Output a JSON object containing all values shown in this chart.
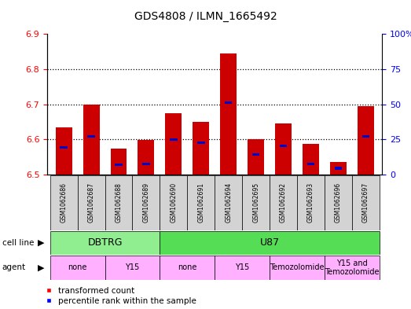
{
  "title": "GDS4808 / ILMN_1665492",
  "samples": [
    "GSM1062686",
    "GSM1062687",
    "GSM1062688",
    "GSM1062689",
    "GSM1062690",
    "GSM1062691",
    "GSM1062694",
    "GSM1062695",
    "GSM1062692",
    "GSM1062693",
    "GSM1062696",
    "GSM1062697"
  ],
  "red_values": [
    6.635,
    6.7,
    6.575,
    6.598,
    6.675,
    6.65,
    6.845,
    6.6,
    6.645,
    6.587,
    6.535,
    6.695
  ],
  "blue_values": [
    6.578,
    6.608,
    6.528,
    6.53,
    6.6,
    6.59,
    6.705,
    6.558,
    6.582,
    6.53,
    6.518,
    6.608
  ],
  "bar_base": 6.5,
  "ylim_left": [
    6.5,
    6.9
  ],
  "ylim_right": [
    0,
    100
  ],
  "yticks_left": [
    6.5,
    6.6,
    6.7,
    6.8,
    6.9
  ],
  "yticks_right": [
    0,
    25,
    50,
    75,
    100
  ],
  "ytick_labels_right": [
    "0",
    "25",
    "50",
    "75",
    "100%"
  ],
  "grid_lines": [
    6.6,
    6.7,
    6.8
  ],
  "cell_line_groups": [
    {
      "label": "DBTRG",
      "start": 0,
      "end": 3,
      "color": "#90EE90"
    },
    {
      "label": "U87",
      "start": 4,
      "end": 11,
      "color": "#55DD55"
    }
  ],
  "agent_groups": [
    {
      "label": "none",
      "start": 0,
      "end": 1,
      "color": "#FFB0FF"
    },
    {
      "label": "Y15",
      "start": 2,
      "end": 3,
      "color": "#FFB0FF"
    },
    {
      "label": "none",
      "start": 4,
      "end": 5,
      "color": "#FFB0FF"
    },
    {
      "label": "Y15",
      "start": 6,
      "end": 7,
      "color": "#FFB0FF"
    },
    {
      "label": "Temozolomide",
      "start": 8,
      "end": 9,
      "color": "#FFB0FF"
    },
    {
      "label": "Y15 and\nTemozolomide",
      "start": 10,
      "end": 11,
      "color": "#FFB0FF"
    }
  ],
  "bar_color": "#CC0000",
  "blue_marker_color": "#0000CC",
  "background_color": "#ffffff",
  "tick_label_bg": "#d3d3d3",
  "legend_red_label": "transformed count",
  "legend_blue_label": "percentile rank within the sample"
}
